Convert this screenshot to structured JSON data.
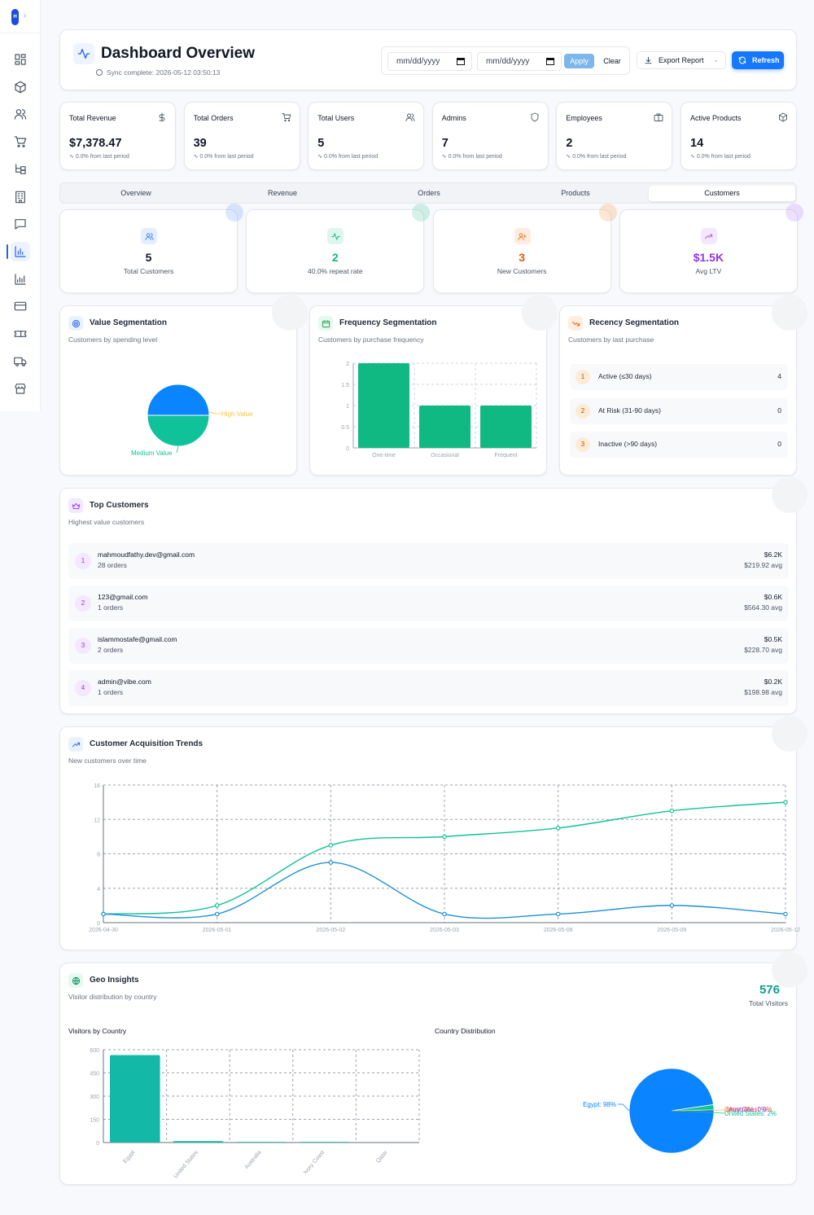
{
  "sidebar": {
    "logo_text": "H",
    "icons": [
      "dashboard-icon",
      "package-icon",
      "users-icon",
      "cart-icon",
      "tree-icon",
      "building-icon",
      "chat-icon",
      "analytics-icon",
      "chart-icon",
      "credit-card-icon",
      "ticket-icon",
      "truck-icon",
      "store-icon"
    ],
    "active_index": 7
  },
  "header": {
    "title": "Dashboard Overview",
    "sync": "Sync complete: 2026-05-12 03:50:13",
    "date_from_placeholder": "mm/dd/yyyy",
    "date_to_placeholder": "mm/dd/yyyy",
    "apply_label": "Apply",
    "clear_label": "Clear",
    "export_label": "Export Report",
    "refresh_label": "Refresh"
  },
  "stats": [
    {
      "label": "Total Revenue",
      "value": "$7,378.47",
      "change": "0.0% from last period",
      "icon": "dollar-icon"
    },
    {
      "label": "Total Orders",
      "value": "39",
      "change": "0.0% from last period",
      "icon": "cart-icon"
    },
    {
      "label": "Total Users",
      "value": "5",
      "change": "0.0% from last period",
      "icon": "users-icon"
    },
    {
      "label": "Admins",
      "value": "7",
      "change": "0.0% from last period",
      "icon": "shield-icon"
    },
    {
      "label": "Employees",
      "value": "2",
      "change": "0.0% from last period",
      "icon": "briefcase-icon"
    },
    {
      "label": "Active Products",
      "value": "14",
      "change": "0.0% from last period",
      "icon": "box-icon"
    }
  ],
  "tabs": [
    {
      "label": "Overview"
    },
    {
      "label": "Revenue"
    },
    {
      "label": "Orders"
    },
    {
      "label": "Products"
    },
    {
      "label": "Customers"
    }
  ],
  "active_tab": 4,
  "kpis": [
    {
      "value": "5",
      "label": "Total Customers",
      "color": "#111827",
      "accent": "#3b82f6",
      "icon": "users-icon"
    },
    {
      "value": "2",
      "label": "40.0% repeat rate",
      "color": "#10b981",
      "accent": "#10b981",
      "icon": "activity-icon"
    },
    {
      "value": "3",
      "label": "New Customers",
      "color": "#ea580c",
      "accent": "#f97316",
      "icon": "user-plus-icon"
    },
    {
      "value": "$1.5K",
      "label": "Avg LTV",
      "color": "#9333ea",
      "accent": "#a855f7",
      "icon": "trending-up-icon"
    }
  ],
  "value_segmentation": {
    "title": "Value Segmentation",
    "subtitle": "Customers by spending level",
    "slices": [
      {
        "label": "High Value",
        "value": 50,
        "color": "#0a84ff"
      },
      {
        "label": "Medium Value",
        "value": 50,
        "color": "#10c29a"
      }
    ]
  },
  "frequency_segmentation": {
    "title": "Frequency Segmentation",
    "subtitle": "Customers by purchase frequency"
  },
  "recency_segmentation": {
    "title": "Recency Segmentation",
    "subtitle": "Customers by last purchase",
    "rows": [
      {
        "rank": "1",
        "label": "Active (≤30 days)",
        "value": "4"
      },
      {
        "rank": "2",
        "label": "At Risk (31-90 days)",
        "value": "0"
      },
      {
        "rank": "3",
        "label": "Inactive (>90 days)",
        "value": "0"
      }
    ]
  },
  "top_customers": {
    "title": "Top Customers",
    "subtitle": "Highest value customers",
    "rows": [
      {
        "rank": "1",
        "email": "mahmoudfathy.dev@gmail.com",
        "orders": "28 orders",
        "total": "$6.2K",
        "avg": "$219.92 avg"
      },
      {
        "rank": "2",
        "email": "123@gmail.com",
        "orders": "1 orders",
        "total": "$0.6K",
        "avg": "$564.30 avg"
      },
      {
        "rank": "3",
        "email": "islammostafe@gmail.com",
        "orders": "2 orders",
        "total": "$0.5K",
        "avg": "$228.70 avg"
      },
      {
        "rank": "4",
        "email": "admin@vibe.com",
        "orders": "1 orders",
        "total": "$0.2K",
        "avg": "$198.98 avg"
      }
    ]
  },
  "acquisition": {
    "title": "Customer Acquisition Trends",
    "subtitle": "New customers over time"
  },
  "geo": {
    "title": "Geo Insights",
    "subtitle": "Visitor distribution by country",
    "total": "576",
    "total_label": "Total Visitors",
    "bar_title": "Visitors by Country",
    "pie_title": "Country Distribution"
  },
  "chart_data": [
    {
      "type": "pie",
      "categories": [
        "High Value",
        "Medium Value"
      ],
      "values": [
        50,
        50
      ]
    },
    {
      "type": "bar",
      "categories": [
        "One-time",
        "Occasional",
        "Frequent"
      ],
      "values": [
        2,
        1,
        1
      ],
      "ylim": [
        0,
        2
      ],
      "yticks": [
        0,
        0.5,
        1,
        1.5,
        2
      ],
      "grid": true
    },
    {
      "type": "line",
      "x": [
        "2026-04-30",
        "2026-05-01",
        "2026-05-02",
        "2026-05-03",
        "2026-05-08",
        "2026-05-09",
        "2026-05-12"
      ],
      "series": [
        {
          "values": [
            1,
            2,
            9,
            10,
            11,
            13,
            14
          ],
          "color": "#10c29a"
        },
        {
          "values": [
            1,
            1,
            7,
            1,
            1,
            2,
            1
          ],
          "color": "#1e90d6"
        }
      ],
      "ylim": [
        0,
        16
      ],
      "yticks": [
        0,
        4,
        8,
        12,
        16
      ],
      "grid": true
    },
    {
      "type": "bar",
      "categories": [
        "Egypt",
        "United States",
        "Australia",
        "Ivory Coast",
        "Qatar"
      ],
      "values": [
        565,
        9,
        1,
        1,
        0
      ],
      "ylim": [
        0,
        600
      ],
      "yticks": [
        0,
        150,
        300,
        450,
        600
      ],
      "grid": true
    },
    {
      "type": "pie",
      "categories": [
        "Egypt",
        "United States",
        "Qatar",
        "Ivory Coast",
        "Australia"
      ],
      "values": [
        98,
        2,
        0,
        0,
        0
      ],
      "labels": [
        "Egypt: 98%",
        "United States: 2%",
        "Qatar: 0%",
        "Ivory Coast: 0%",
        "Australia: 0%"
      ],
      "colors": [
        "#0a84ff",
        "#10c29a",
        "#f59e0b",
        "#ef4444",
        "#8b5cf6"
      ]
    }
  ]
}
